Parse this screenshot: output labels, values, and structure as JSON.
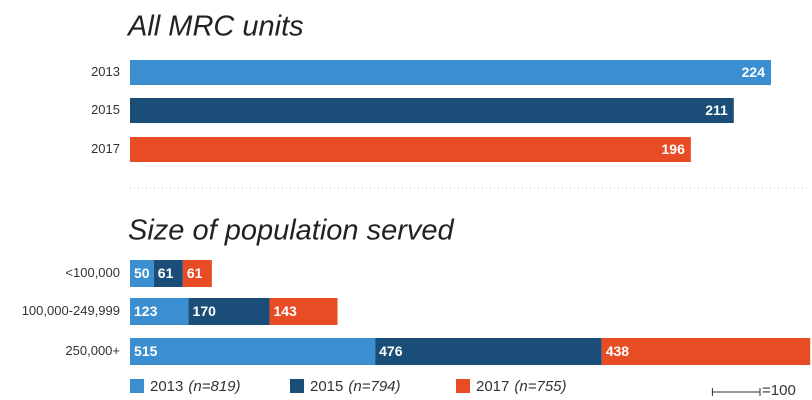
{
  "chart_data": [
    {
      "type": "bar",
      "title": "All MRC units",
      "categories": [
        "2013",
        "2015",
        "2017"
      ],
      "values": [
        224,
        211,
        196
      ],
      "colors": [
        "#3b8fd0",
        "#1a4e78",
        "#e84c25"
      ]
    },
    {
      "type": "stacked_bar",
      "title": "Size of population served",
      "categories": [
        "<100,000",
        "100,000-249,999",
        "250,000+"
      ],
      "series": [
        {
          "name": "2013",
          "note": "(n=819)",
          "color": "#3b8fd0",
          "values": [
            50,
            123,
            515
          ]
        },
        {
          "name": "2015",
          "note": "(n=794)",
          "color": "#1a4e78",
          "values": [
            61,
            170,
            476
          ]
        },
        {
          "name": "2017",
          "note": "(n=755)",
          "color": "#e84c25",
          "values": [
            61,
            143,
            438
          ]
        }
      ],
      "scale_bar": {
        "value": 100,
        "label": "=100"
      }
    }
  ]
}
